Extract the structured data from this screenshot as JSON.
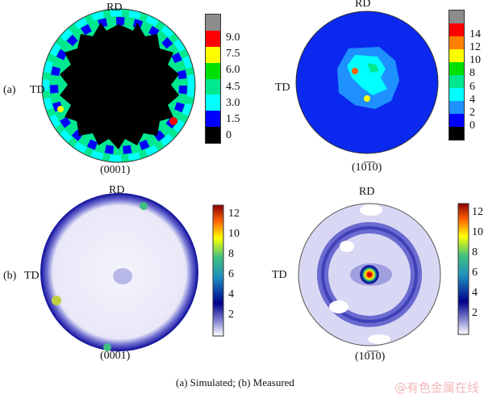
{
  "chart_data": [
    {
      "type": "heatmap",
      "panel": "(a)",
      "pole": "(0001)",
      "labels": {
        "top": "RD",
        "left": "TD"
      },
      "colorbar": {
        "ticks": [
          "9.0",
          "7.5",
          "6.0",
          "4.5",
          "3.0",
          "1.5",
          "0"
        ],
        "colors": [
          "#8c8c8c",
          "#ff0000",
          "#ffff00",
          "#00e000",
          "#00e890",
          "#00ffff",
          "#0000ff",
          "#000000"
        ]
      }
    },
    {
      "type": "heatmap",
      "panel": "(a)",
      "pole": "(10̅1̅0)",
      "labels": {
        "top": "RD",
        "left": "TD"
      },
      "colorbar": {
        "ticks": [
          "14",
          "12",
          "10",
          "8",
          "6",
          "4",
          "2",
          "0"
        ],
        "colors": [
          "#8c8c8c",
          "#ff0000",
          "#ff8000",
          "#ffff00",
          "#00e000",
          "#00e890",
          "#00ffff",
          "#1e90ff",
          "#0000ff",
          "#000000"
        ]
      }
    },
    {
      "type": "heatmap",
      "panel": "(b)",
      "pole": "(0001)",
      "labels": {
        "top": "RD",
        "left": "TD"
      },
      "colorbar": {
        "ticks": [
          "12",
          "10",
          "8",
          "6",
          "4",
          "2"
        ],
        "gradient": [
          "#ffffff",
          "#8080d0",
          "#00008b",
          "#1e90c0",
          "#40c080",
          "#ffff00",
          "#ff8000",
          "#8b0000"
        ]
      }
    },
    {
      "type": "heatmap",
      "panel": "(b)",
      "pole": "(10̅1̅0)",
      "labels": {
        "top": "RD",
        "left": "TD"
      },
      "colorbar": {
        "ticks": [
          "12",
          "10",
          "8",
          "6",
          "4",
          "2"
        ],
        "gradient": [
          "#ffffff",
          "#8080d0",
          "#00008b",
          "#1e90c0",
          "#40c080",
          "#ffff00",
          "#ff8000",
          "#8b0000"
        ]
      }
    }
  ],
  "text": {
    "rd": "RD",
    "td": "TD",
    "panel_a": "(a)",
    "panel_b": "(b)",
    "pole_0001": "(0001)",
    "pole_1010": "(10̅1̅0)",
    "caption": "(a) Simulated; (b) Measured",
    "watermark": "@有色金属在线"
  }
}
